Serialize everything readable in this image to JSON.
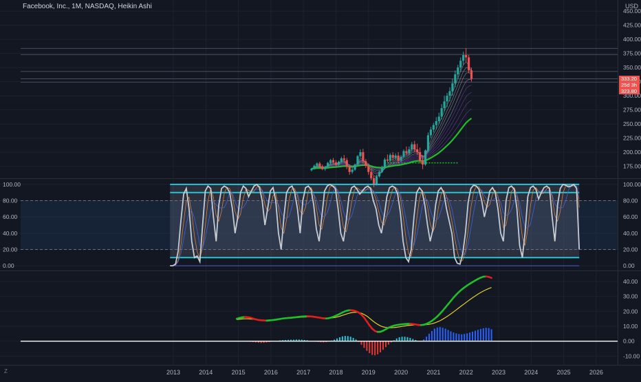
{
  "header": {
    "title": "Facebook, Inc., 1M, NASDAQ, Heikin Ashi",
    "currency": "USD",
    "timezone_badge": "Z"
  },
  "colors": {
    "background": "#131722",
    "grid": "#1e2230",
    "bull": "#26a69a",
    "bear": "#ef5350",
    "band_cyan": "#22c6d8",
    "stoch_k": "#c7cbd2",
    "ma_green": "#1fbf2b",
    "ma_red": "#e01e1e",
    "signal_yellow": "#e6d02a",
    "zero_line": "#ffffff"
  },
  "chart_data": [
    {
      "type": "candlestick",
      "panel": "price",
      "y_ticks": [
        "450.00",
        "425.00",
        "400.00",
        "375.00",
        "350.00",
        "325.00",
        "300.00",
        "275.00",
        "250.00",
        "225.00",
        "200.00",
        "175.00"
      ],
      "ylim": [
        155,
        455
      ],
      "price_labels": [
        "333.20",
        "25d 3h",
        "323.80"
      ],
      "horizontal_levels": [
        384,
        373,
        343,
        330,
        324
      ],
      "support_dotted": 181,
      "x_start": 2017.25,
      "x_step": 0.0833,
      "candles": [
        [
          168,
          172,
          166,
          171
        ],
        [
          171,
          178,
          169,
          176
        ],
        [
          176,
          182,
          173,
          180
        ],
        [
          180,
          183,
          172,
          175
        ],
        [
          175,
          178,
          168,
          170
        ],
        [
          170,
          176,
          167,
          174
        ],
        [
          174,
          183,
          172,
          181
        ],
        [
          181,
          188,
          178,
          186
        ],
        [
          186,
          190,
          180,
          182
        ],
        [
          182,
          186,
          175,
          178
        ],
        [
          178,
          185,
          176,
          183
        ],
        [
          183,
          192,
          181,
          189
        ],
        [
          189,
          195,
          184,
          186
        ],
        [
          186,
          190,
          170,
          174
        ],
        [
          174,
          178,
          160,
          165
        ],
        [
          165,
          172,
          162,
          169
        ],
        [
          169,
          180,
          167,
          178
        ],
        [
          178,
          195,
          176,
          193
        ],
        [
          193,
          205,
          190,
          200
        ],
        [
          200,
          206,
          180,
          184
        ],
        [
          184,
          188,
          172,
          176
        ],
        [
          176,
          180,
          160,
          165
        ],
        [
          165,
          170,
          150,
          154
        ],
        [
          154,
          158,
          138,
          144
        ],
        [
          144,
          160,
          141,
          157
        ],
        [
          157,
          168,
          155,
          165
        ],
        [
          165,
          176,
          163,
          172
        ],
        [
          172,
          190,
          170,
          187
        ],
        [
          187,
          196,
          182,
          185
        ],
        [
          185,
          198,
          183,
          195
        ],
        [
          195,
          200,
          185,
          190
        ],
        [
          190,
          198,
          186,
          194
        ],
        [
          194,
          200,
          180,
          185
        ],
        [
          185,
          195,
          182,
          192
        ],
        [
          192,
          205,
          190,
          202
        ],
        [
          202,
          210,
          195,
          198
        ],
        [
          198,
          210,
          195,
          205
        ],
        [
          205,
          218,
          202,
          214
        ],
        [
          214,
          220,
          200,
          205
        ],
        [
          205,
          215,
          195,
          200
        ],
        [
          200,
          208,
          180,
          185
        ],
        [
          185,
          195,
          170,
          178
        ],
        [
          178,
          205,
          176,
          203
        ],
        [
          203,
          235,
          200,
          230
        ],
        [
          230,
          245,
          225,
          240
        ],
        [
          240,
          252,
          235,
          248
        ],
        [
          248,
          262,
          240,
          255
        ],
        [
          255,
          270,
          250,
          263
        ],
        [
          263,
          285,
          258,
          278
        ],
        [
          278,
          300,
          272,
          290
        ],
        [
          290,
          305,
          280,
          300
        ],
        [
          300,
          315,
          290,
          308
        ],
        [
          308,
          330,
          300,
          322
        ],
        [
          322,
          345,
          315,
          338
        ],
        [
          338,
          355,
          330,
          350
        ],
        [
          350,
          368,
          342,
          362
        ],
        [
          362,
          378,
          355,
          372
        ],
        [
          372,
          384,
          360,
          368
        ],
        [
          368,
          372,
          340,
          345
        ],
        [
          345,
          350,
          325,
          330
        ]
      ]
    },
    {
      "type": "line",
      "panel": "stochastic",
      "y_ticks": [
        "100.00",
        "80.00",
        "60.00",
        "40.00",
        "20.00",
        "0.00"
      ],
      "ylim": [
        -5,
        105
      ],
      "bands": [
        100,
        90,
        10,
        0
      ],
      "dashed_levels": [
        80,
        20
      ],
      "x_start": 2012.9,
      "x_step": 0.0833,
      "series": [
        {
          "values": [
            0,
            0,
            2,
            18,
            55,
            88,
            95,
            70,
            30,
            10,
            12,
            5,
            50,
            92,
            98,
            95,
            60,
            30,
            75,
            95,
            98,
            96,
            90,
            70,
            40,
            60,
            90,
            98,
            95,
            85,
            92,
            98,
            100,
            96,
            80,
            50,
            70,
            92,
            96,
            80,
            40,
            20,
            60,
            90,
            96,
            98,
            90,
            70,
            40,
            80,
            96,
            98,
            94,
            75,
            45,
            30,
            60,
            92,
            98,
            100,
            98,
            95,
            70,
            40,
            30,
            55,
            85,
            96,
            98,
            94,
            88,
            92,
            96,
            98,
            95,
            80,
            70,
            50,
            40,
            60,
            85,
            96,
            98,
            96,
            88,
            65,
            30,
            10,
            5,
            20,
            60,
            90,
            96,
            92,
            75,
            50,
            30,
            45,
            75,
            92,
            96,
            90,
            70,
            55,
            40,
            10,
            3,
            2,
            15,
            40,
            78,
            95,
            99,
            98,
            94,
            80,
            60,
            75,
            92,
            96,
            90,
            70,
            40,
            30,
            80,
            96,
            98,
            94,
            70,
            25,
            10,
            40,
            85,
            96,
            98,
            94,
            82,
            90,
            96,
            98,
            95,
            60,
            30,
            75,
            95,
            100,
            99,
            97,
            98,
            100,
            95,
            20
          ]
        }
      ]
    },
    {
      "type": "line",
      "panel": "oscillator",
      "y_ticks": [
        "40.00",
        "30.00",
        "20.00",
        "10.00",
        "0.00",
        "-10.00"
      ],
      "ylim": [
        -14,
        46
      ],
      "x_start": 2014.95,
      "x_step": 0.0833,
      "series": [
        {
          "values": [
            15,
            15.6,
            16,
            16.2,
            16.1,
            15.8,
            15.2,
            14.6,
            14.2,
            14,
            13.9,
            13.8,
            13.9,
            14.1,
            14.3,
            14.6,
            14.9,
            15.2,
            15.4,
            15.6,
            15.7,
            15.9,
            16.1,
            16.3,
            16.5,
            16.6,
            16.7,
            16.6,
            16.5,
            16.2,
            15.9,
            15.6,
            15.3,
            15.2,
            15.4,
            15.9,
            16.6,
            17.4,
            18.3,
            19.2,
            20.1,
            20.6,
            20.8,
            20.6,
            20.1,
            19.2,
            17.8,
            15.8,
            13.2,
            10.6,
            8.3,
            6.8,
            6.2,
            6.3,
            7,
            8,
            9,
            9.8,
            10.4,
            10.8,
            11.1,
            11.3,
            11.5,
            11.6,
            11.7,
            11.5,
            11.2,
            10.9,
            10.8,
            11,
            11.6,
            12.5,
            13.6,
            15,
            16.6,
            18.4,
            20.4,
            22.6,
            24.8,
            27,
            29.2,
            31.2,
            33,
            34.6,
            36,
            37.3,
            38.5,
            39.6,
            40.7,
            41.7,
            42.6,
            43.2,
            43.4,
            43.1,
            42.4
          ]
        },
        {
          "values": [
            14.5,
            14.7,
            14.9,
            15,
            15,
            14.9,
            14.7,
            14.5,
            14.3,
            14.2,
            14.1,
            14.1,
            14.2,
            14.3,
            14.4,
            14.6,
            14.8,
            15,
            15.2,
            15.3,
            15.5,
            15.6,
            15.8,
            15.9,
            16.1,
            16.2,
            16.3,
            16.3,
            16.3,
            16.2,
            16,
            15.8,
            15.6,
            15.5,
            15.5,
            15.6,
            15.8,
            16.2,
            16.7,
            17.3,
            17.9,
            18.5,
            19,
            19.3,
            19.4,
            19.2,
            18.7,
            17.9,
            16.8,
            15.4,
            13.9,
            12.5,
            11.3,
            10.3,
            9.6,
            9.2,
            9,
            9,
            9.1,
            9.3,
            9.6,
            9.9,
            10.2,
            10.5,
            10.7,
            10.9,
            11,
            11,
            11,
            11,
            11.1,
            11.3,
            11.7,
            12.2,
            12.9,
            13.7,
            14.7,
            15.8,
            17,
            18.3,
            19.6,
            21,
            22.4,
            23.8,
            25.1,
            26.5,
            27.8,
            29.1,
            30.3,
            31.5,
            32.6,
            33.6,
            34.5,
            35.3,
            36
          ]
        }
      ],
      "histogram": [
        0,
        0,
        0,
        0,
        0,
        -0.4,
        -0.6,
        -0.8,
        -1,
        -1.2,
        -1.1,
        -0.9,
        -0.6,
        -0.3,
        0,
        0.3,
        0.5,
        0.7,
        0.8,
        0.9,
        1,
        1,
        1.1,
        1.1,
        1,
        0.8,
        0.6,
        0.3,
        0.1,
        -0.2,
        -0.5,
        -0.7,
        -0.8,
        -0.6,
        -0.2,
        0.4,
        1,
        1.8,
        2.6,
        3.2,
        3.5,
        3.4,
        3,
        2.2,
        1.1,
        -0.5,
        -2.4,
        -4.5,
        -6.5,
        -8,
        -9.2,
        -9.5,
        -8.8,
        -7.5,
        -5.8,
        -4,
        -2.3,
        -0.8,
        0.6,
        1.8,
        2.6,
        3,
        3,
        2.7,
        2.2,
        1.5,
        0.8,
        0.2,
        0,
        1.2,
        3,
        5,
        6.8,
        8.4,
        9.2,
        9.5,
        9,
        8.4,
        7.5,
        6.6,
        5.8,
        5.2,
        4.8,
        4.6,
        4.8,
        5.2,
        5.8,
        6.4,
        7,
        7.6,
        8.2,
        8.7,
        9,
        8.8,
        8
      ]
    }
  ],
  "time_axis": {
    "labels": [
      "2013",
      "2014",
      "2015",
      "2016",
      "2017",
      "2018",
      "2019",
      "2020",
      "2021",
      "2022",
      "2023",
      "2024",
      "2025",
      "2026"
    ]
  }
}
